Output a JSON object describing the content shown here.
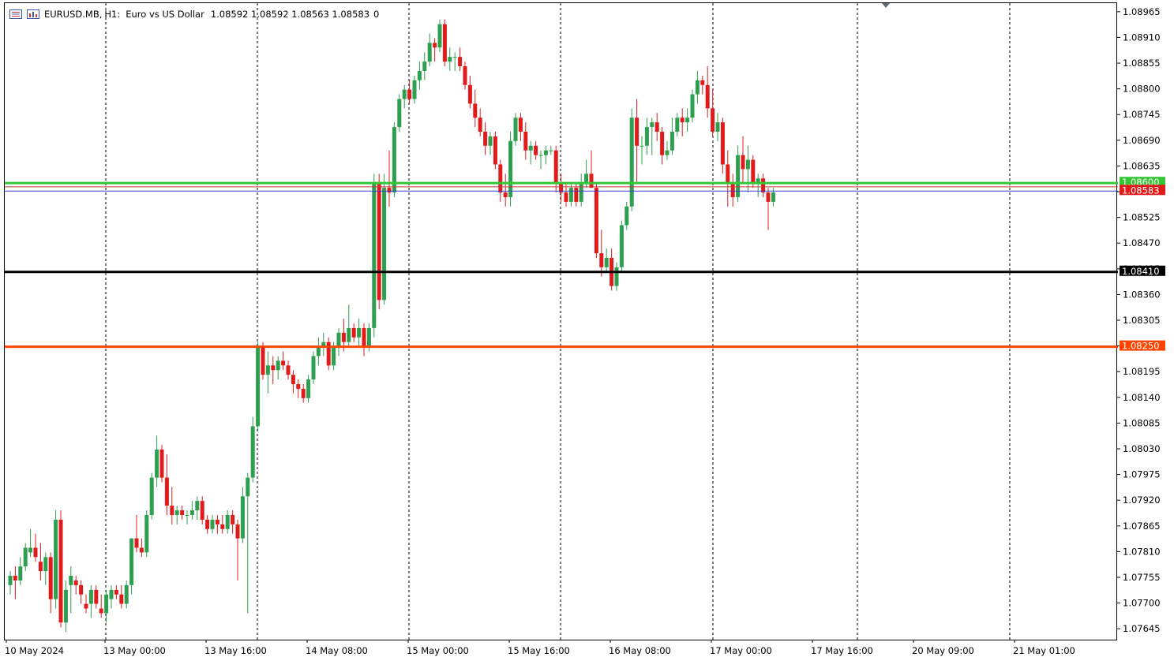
{
  "header": {
    "symbol": "EURUSD.MB,",
    "timeframe": "H1:",
    "description": "Euro vs US Dollar",
    "ohlc": "1.08592 1.08592 1.08563 1.08583",
    "volume": "0"
  },
  "icons": {
    "left": "trading-menu-icon",
    "right": "chart-window-icon"
  },
  "colors": {
    "bull": "#2e9e4f",
    "bear": "#e11b1b",
    "support_black": "#000000",
    "resistance_green": "#35c635",
    "level_orange": "#ff4500",
    "bid_line": "#3a3ad8",
    "ask_line": "#c33a3a"
  },
  "chart_data": {
    "type": "candlestick",
    "symbol": "EURUSD.MB",
    "timeframe": "H1",
    "ylim": [
      1.0762,
      1.08985
    ],
    "y_ticks": [
      "1.08965",
      "1.08910",
      "1.08855",
      "1.08800",
      "1.08745",
      "1.08690",
      "1.08635",
      "1.08580",
      "1.08525",
      "1.08470",
      "1.08415",
      "1.08360",
      "1.08305",
      "1.08250",
      "1.08195",
      "1.08140",
      "1.08085",
      "1.08030",
      "1.07975",
      "1.07920",
      "1.07865",
      "1.07810",
      "1.07755",
      "1.07700",
      "1.07645"
    ],
    "x_labels": [
      "10 May 2024",
      "13 May 00:00",
      "13 May 16:00",
      "14 May 08:00",
      "15 May 00:00",
      "15 May 16:00",
      "16 May 08:00",
      "17 May 00:00",
      "17 May 16:00",
      "20 May 09:00",
      "21 May 01:00"
    ],
    "horizontal_levels": [
      {
        "price": "1.08600",
        "value": 1.086,
        "color": "#35c635"
      },
      {
        "price": "1.08410",
        "value": 1.0841,
        "color": "#000000"
      },
      {
        "price": "1.08250",
        "value": 1.0825,
        "color": "#ff4500"
      },
      {
        "price": "1.08583",
        "value": 1.08583,
        "color": "#e11b1b"
      }
    ],
    "bid": 1.08583,
    "ask": 1.08592,
    "candles": [
      [
        1.0774,
        1.0777,
        1.0772,
        1.0776
      ],
      [
        1.0776,
        1.0778,
        1.0771,
        1.0775
      ],
      [
        1.0775,
        1.078,
        1.0774,
        1.0778
      ],
      [
        1.0778,
        1.0783,
        1.0777,
        1.0782
      ],
      [
        1.0781,
        1.0786,
        1.078,
        1.0782
      ],
      [
        1.0782,
        1.0785,
        1.0779,
        1.078
      ],
      [
        1.0779,
        1.0783,
        1.0775,
        1.0777
      ],
      [
        1.0777,
        1.0781,
        1.0774,
        1.078
      ],
      [
        1.078,
        1.0781,
        1.0768,
        1.0771
      ],
      [
        1.0771,
        1.079,
        1.0769,
        1.0788
      ],
      [
        1.0788,
        1.079,
        1.0765,
        1.0766
      ],
      [
        1.0766,
        1.0775,
        1.0764,
        1.0773
      ],
      [
        1.0774,
        1.0778,
        1.0768,
        1.0776
      ],
      [
        1.0775,
        1.0776,
        1.0772,
        1.0774
      ],
      [
        1.0774,
        1.0775,
        1.077,
        1.0772
      ],
      [
        1.077,
        1.0772,
        1.0768,
        1.0769
      ],
      [
        1.077,
        1.0774,
        1.0767,
        1.0773
      ],
      [
        1.0773,
        1.0774,
        1.0769,
        1.077
      ],
      [
        1.0769,
        1.0772,
        1.0767,
        1.0768
      ],
      [
        1.0768,
        1.0773,
        1.0766,
        1.0772
      ],
      [
        1.0771,
        1.0774,
        1.0769,
        1.0773
      ],
      [
        1.0773,
        1.0774,
        1.0771,
        1.0772
      ],
      [
        1.0772,
        1.0774,
        1.0769,
        1.077
      ],
      [
        1.077,
        1.0775,
        1.0769,
        1.0774
      ],
      [
        1.0774,
        1.0784,
        1.0772,
        1.0784
      ],
      [
        1.0784,
        1.0789,
        1.0781,
        1.0782
      ],
      [
        1.0782,
        1.0784,
        1.078,
        1.0781
      ],
      [
        1.0781,
        1.079,
        1.078,
        1.0789
      ],
      [
        1.0789,
        1.0798,
        1.0788,
        1.0797
      ],
      [
        1.0797,
        1.0806,
        1.0795,
        1.0803
      ],
      [
        1.0803,
        1.0804,
        1.0796,
        1.0797
      ],
      [
        1.0797,
        1.0802,
        1.0789,
        1.0791
      ],
      [
        1.0791,
        1.0795,
        1.0787,
        1.0789
      ],
      [
        1.0789,
        1.0791,
        1.0787,
        1.079
      ],
      [
        1.079,
        1.0791,
        1.0788,
        1.0789
      ],
      [
        1.0789,
        1.079,
        1.0787,
        1.0789
      ],
      [
        1.0789,
        1.0792,
        1.0788,
        1.079
      ],
      [
        1.079,
        1.0793,
        1.0788,
        1.0792
      ],
      [
        1.0792,
        1.0793,
        1.0787,
        1.0788
      ],
      [
        1.0788,
        1.0789,
        1.0785,
        1.0786
      ],
      [
        1.0786,
        1.0789,
        1.0785,
        1.0788
      ],
      [
        1.0788,
        1.0789,
        1.0785,
        1.0787
      ],
      [
        1.0787,
        1.0789,
        1.0785,
        1.0786
      ],
      [
        1.0786,
        1.079,
        1.0785,
        1.0789
      ],
      [
        1.0789,
        1.079,
        1.0785,
        1.0787
      ],
      [
        1.0787,
        1.0788,
        1.0775,
        1.0784
      ],
      [
        1.0784,
        1.0795,
        1.0783,
        1.0793
      ],
      [
        1.0793,
        1.0798,
        1.0768,
        1.0797
      ],
      [
        1.0797,
        1.081,
        1.0796,
        1.0808
      ],
      [
        1.0808,
        1.0826,
        1.0807,
        1.0825
      ],
      [
        1.0825,
        1.0826,
        1.0818,
        1.0819
      ],
      [
        1.0819,
        1.0824,
        1.0815,
        1.0821
      ],
      [
        1.0821,
        1.0823,
        1.0817,
        1.082
      ],
      [
        1.082,
        1.0823,
        1.0818,
        1.0822
      ],
      [
        1.0822,
        1.0824,
        1.082,
        1.0821
      ],
      [
        1.0821,
        1.0822,
        1.0818,
        1.0819
      ],
      [
        1.0819,
        1.082,
        1.0815,
        1.0817
      ],
      [
        1.0817,
        1.0818,
        1.0814,
        1.0816
      ],
      [
        1.0816,
        1.0817,
        1.0813,
        1.0814
      ],
      [
        1.0814,
        1.0819,
        1.0813,
        1.0818
      ],
      [
        1.0818,
        1.0824,
        1.0817,
        1.0823
      ],
      [
        1.0823,
        1.0827,
        1.0821,
        1.0825
      ],
      [
        1.0825,
        1.0828,
        1.0823,
        1.0826
      ],
      [
        1.0826,
        1.0827,
        1.082,
        1.0821
      ],
      [
        1.0821,
        1.0826,
        1.082,
        1.0825
      ],
      [
        1.0825,
        1.0829,
        1.0823,
        1.0828
      ],
      [
        1.0828,
        1.0831,
        1.0824,
        1.0826
      ],
      [
        1.0826,
        1.0834,
        1.0825,
        1.0829
      ],
      [
        1.0829,
        1.083,
        1.0826,
        1.0827
      ],
      [
        1.0827,
        1.0831,
        1.0825,
        1.0829
      ],
      [
        1.0829,
        1.083,
        1.0823,
        1.0825
      ],
      [
        1.0825,
        1.083,
        1.0824,
        1.0829
      ],
      [
        1.0829,
        1.0862,
        1.0827,
        1.086
      ],
      [
        1.086,
        1.0862,
        1.0833,
        1.0835
      ],
      [
        1.0835,
        1.0862,
        1.0834,
        1.0859
      ],
      [
        1.0859,
        1.0867,
        1.0855,
        1.0858
      ],
      [
        1.0858,
        1.0873,
        1.0857,
        1.0872
      ],
      [
        1.0872,
        1.0879,
        1.0871,
        1.0878
      ],
      [
        1.0878,
        1.0881,
        1.0876,
        1.088
      ],
      [
        1.088,
        1.0882,
        1.0877,
        1.0878
      ],
      [
        1.0878,
        1.0883,
        1.0877,
        1.0882
      ],
      [
        1.0882,
        1.0886,
        1.088,
        1.0884
      ],
      [
        1.0884,
        1.0888,
        1.0882,
        1.0886
      ],
      [
        1.0886,
        1.0892,
        1.0885,
        1.089
      ],
      [
        1.089,
        1.0891,
        1.0886,
        1.0889
      ],
      [
        1.0889,
        1.0895,
        1.0888,
        1.0894
      ],
      [
        1.0894,
        1.0895,
        1.0885,
        1.0886
      ],
      [
        1.0886,
        1.0889,
        1.0884,
        1.0887
      ],
      [
        1.0887,
        1.0888,
        1.0884,
        1.0887
      ],
      [
        1.0887,
        1.0889,
        1.0884,
        1.0885
      ],
      [
        1.0885,
        1.0886,
        1.088,
        1.0881
      ],
      [
        1.0881,
        1.0883,
        1.0876,
        1.0877
      ],
      [
        1.0877,
        1.088,
        1.0872,
        1.0874
      ],
      [
        1.0874,
        1.0876,
        1.087,
        1.0871
      ],
      [
        1.0871,
        1.0873,
        1.0866,
        1.0868
      ],
      [
        1.0868,
        1.0871,
        1.0866,
        1.087
      ],
      [
        1.087,
        1.0871,
        1.0863,
        1.0864
      ],
      [
        1.0864,
        1.0865,
        1.0856,
        1.0858
      ],
      [
        1.0858,
        1.0862,
        1.0855,
        1.0857
      ],
      [
        1.0857,
        1.0871,
        1.0855,
        1.0869
      ],
      [
        1.0869,
        1.0875,
        1.0868,
        1.0874
      ],
      [
        1.0874,
        1.0875,
        1.0869,
        1.0871
      ],
      [
        1.0871,
        1.0873,
        1.0865,
        1.0867
      ],
      [
        1.0867,
        1.0869,
        1.0864,
        1.0868
      ],
      [
        1.0868,
        1.0869,
        1.0865,
        1.0866
      ],
      [
        1.0866,
        1.0867,
        1.0863,
        1.0866
      ],
      [
        1.0866,
        1.0868,
        1.0864,
        1.0867
      ],
      [
        1.0867,
        1.0868,
        1.0866,
        1.0867
      ],
      [
        1.0867,
        1.0868,
        1.0858,
        1.086
      ],
      [
        1.086,
        1.0862,
        1.0856,
        1.0858
      ],
      [
        1.0858,
        1.086,
        1.0855,
        1.0856
      ],
      [
        1.0856,
        1.086,
        1.0855,
        1.0859
      ],
      [
        1.0859,
        1.086,
        1.0855,
        1.0856
      ],
      [
        1.0856,
        1.0862,
        1.0855,
        1.086
      ],
      [
        1.086,
        1.0865,
        1.0859,
        1.0862
      ],
      [
        1.0862,
        1.0867,
        1.0859,
        1.0859
      ],
      [
        1.0859,
        1.086,
        1.0844,
        1.0845
      ],
      [
        1.0845,
        1.085,
        1.084,
        1.0842
      ],
      [
        1.0842,
        1.0846,
        1.0841,
        1.0844
      ],
      [
        1.0844,
        1.0846,
        1.0837,
        1.0838
      ],
      [
        1.0838,
        1.0843,
        1.0837,
        1.0842
      ],
      [
        1.0842,
        1.0852,
        1.0841,
        1.0851
      ],
      [
        1.0851,
        1.0856,
        1.085,
        1.0855
      ],
      [
        1.0855,
        1.0876,
        1.0854,
        1.0874
      ],
      [
        1.0874,
        1.0878,
        1.086,
        1.0868
      ],
      [
        1.0868,
        1.087,
        1.0864,
        1.0868
      ],
      [
        1.0868,
        1.0874,
        1.0866,
        1.0872
      ],
      [
        1.0872,
        1.0874,
        1.0866,
        1.0873
      ],
      [
        1.0873,
        1.0875,
        1.0869,
        1.0871
      ],
      [
        1.0871,
        1.0872,
        1.0864,
        1.0866
      ],
      [
        1.0866,
        1.0869,
        1.0865,
        1.0867
      ],
      [
        1.0867,
        1.0874,
        1.0866,
        1.0871
      ],
      [
        1.0871,
        1.0875,
        1.087,
        1.0874
      ],
      [
        1.0874,
        1.0876,
        1.087,
        1.0873
      ],
      [
        1.0873,
        1.0876,
        1.0871,
        1.0874
      ],
      [
        1.0874,
        1.088,
        1.0873,
        1.0879
      ],
      [
        1.0879,
        1.0884,
        1.0877,
        1.0882
      ],
      [
        1.0882,
        1.0883,
        1.0879,
        1.0881
      ],
      [
        1.0881,
        1.0885,
        1.0874,
        1.0876
      ],
      [
        1.0876,
        1.088,
        1.087,
        1.0871
      ],
      [
        1.0871,
        1.0875,
        1.0869,
        1.0873
      ],
      [
        1.0873,
        1.0874,
        1.0862,
        1.0864
      ],
      [
        1.0864,
        1.0867,
        1.0855,
        1.086
      ],
      [
        1.086,
        1.0862,
        1.0855,
        1.0857
      ],
      [
        1.0857,
        1.0868,
        1.0856,
        1.0866
      ],
      [
        1.0866,
        1.087,
        1.086,
        1.0863
      ],
      [
        1.0863,
        1.0868,
        1.0858,
        1.0865
      ],
      [
        1.0865,
        1.0866,
        1.0859,
        1.086
      ],
      [
        1.086,
        1.0862,
        1.0857,
        1.0861
      ],
      [
        1.0861,
        1.0862,
        1.0857,
        1.0858
      ],
      [
        1.0858,
        1.0859,
        1.085,
        1.0856
      ],
      [
        1.0856,
        1.0859,
        1.0855,
        1.0858
      ]
    ]
  }
}
